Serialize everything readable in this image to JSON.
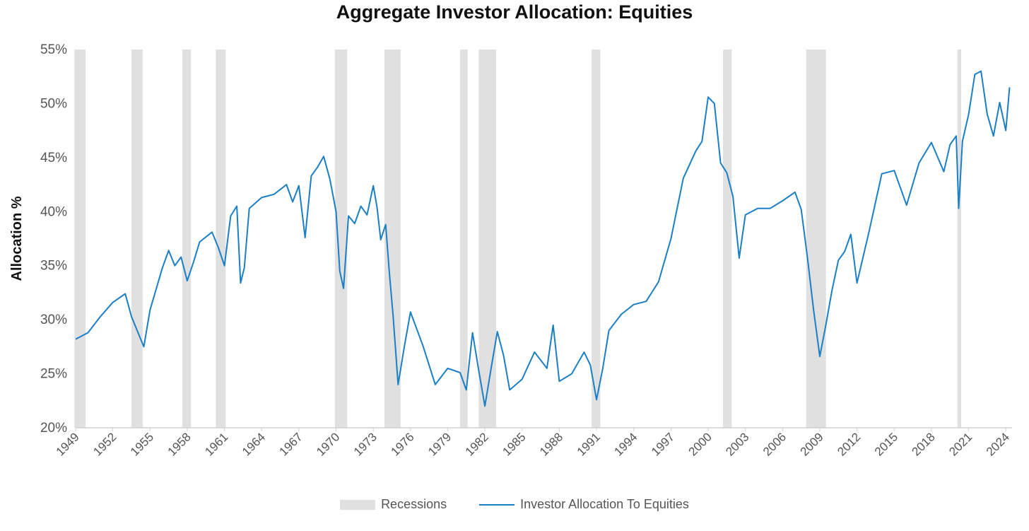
{
  "chart_data": {
    "type": "line",
    "title": "Aggregate Investor Allocation: Equities",
    "ylabel": "Allocation %",
    "ylim": [
      20,
      55
    ],
    "yticks": [
      "20%",
      "25%",
      "30%",
      "35%",
      "40%",
      "45%",
      "50%",
      "55%"
    ],
    "xlim": [
      1949,
      2024.5
    ],
    "xticks": [
      "1949",
      "1952",
      "1955",
      "1958",
      "1961",
      "1964",
      "1967",
      "1970",
      "1973",
      "1976",
      "1979",
      "1982",
      "1985",
      "1988",
      "1991",
      "1994",
      "1997",
      "2000",
      "2003",
      "2006",
      "2009",
      "2012",
      "2015",
      "2018",
      "2021",
      "2024"
    ],
    "grid": false,
    "legend_position": "bottom",
    "legend": [
      "Recessions",
      "Investor Allocation To Equities"
    ],
    "colors": {
      "line": "#1a7fc4",
      "recession": "#e0e0e0"
    },
    "recessions": [
      [
        1948.9,
        1949.8
      ],
      [
        1953.5,
        1954.4
      ],
      [
        1957.6,
        1958.3
      ],
      [
        1960.3,
        1961.1
      ],
      [
        1969.9,
        1970.9
      ],
      [
        1973.9,
        1975.2
      ],
      [
        1980.0,
        1980.6
      ],
      [
        1981.5,
        1982.9
      ],
      [
        1990.6,
        1991.3
      ],
      [
        2001.2,
        2001.9
      ],
      [
        2007.9,
        2009.5
      ],
      [
        2020.1,
        2020.4
      ]
    ],
    "series": [
      {
        "name": "Investor Allocation To Equities",
        "x": [
          1949,
          1950,
          1951,
          1952,
          1953,
          1953.5,
          1954,
          1954.5,
          1955,
          1956,
          1956.5,
          1957,
          1957.5,
          1958,
          1958.5,
          1959,
          1960,
          1960.5,
          1961,
          1961.5,
          1962,
          1962.3,
          1962.6,
          1963,
          1964,
          1965,
          1966,
          1966.5,
          1967,
          1967.5,
          1968,
          1968.5,
          1969,
          1969.5,
          1970,
          1970.3,
          1970.6,
          1971,
          1971.5,
          1972,
          1972.5,
          1973,
          1973.3,
          1973.6,
          1974,
          1974.3,
          1974.6,
          1975,
          1975.5,
          1976,
          1977,
          1978,
          1979,
          1980,
          1980.5,
          1981,
          1981.5,
          1982,
          1982.5,
          1983,
          1983.5,
          1984,
          1985,
          1986,
          1987,
          1987.5,
          1988,
          1989,
          1990,
          1990.5,
          1991,
          1991.5,
          1992,
          1993,
          1994,
          1995,
          1996,
          1997,
          1998,
          1999,
          1999.5,
          2000,
          2000.5,
          2001,
          2001.5,
          2002,
          2002.5,
          2003,
          2004,
          2005,
          2006,
          2007,
          2007.5,
          2008,
          2008.5,
          2009,
          2009.5,
          2010,
          2010.5,
          2011,
          2011.5,
          2012,
          2013,
          2014,
          2015,
          2016,
          2017,
          2018,
          2019,
          2019.5,
          2020,
          2020.2,
          2020.5,
          2021,
          2021.5,
          2022,
          2022.5,
          2023,
          2023.5,
          2024,
          2024.3
        ],
        "y": [
          28.2,
          28.8,
          30.3,
          31.6,
          32.4,
          30.3,
          28.9,
          27.5,
          30.9,
          34.8,
          36.4,
          35.0,
          35.8,
          33.6,
          35.3,
          37.2,
          38.1,
          36.7,
          35.0,
          39.6,
          40.5,
          33.4,
          34.8,
          40.3,
          41.3,
          41.6,
          42.5,
          40.9,
          42.4,
          37.6,
          43.3,
          44.1,
          45.1,
          43.0,
          40.0,
          34.5,
          32.9,
          39.6,
          38.9,
          40.5,
          39.7,
          42.4,
          40.4,
          37.4,
          38.8,
          34.3,
          30.3,
          24.0,
          27.5,
          30.7,
          27.6,
          24.0,
          25.5,
          25.1,
          23.5,
          28.8,
          25.3,
          22.0,
          25.5,
          28.9,
          26.7,
          23.5,
          24.5,
          27.0,
          25.5,
          29.5,
          24.3,
          25.0,
          27.0,
          25.8,
          22.6,
          25.5,
          29.0,
          30.5,
          31.4,
          31.7,
          33.5,
          37.5,
          43.1,
          45.6,
          46.5,
          50.6,
          50.0,
          44.5,
          43.6,
          41.4,
          35.7,
          39.7,
          40.3,
          40.3,
          41.0,
          41.8,
          40.2,
          35.8,
          30.9,
          26.6,
          29.6,
          32.8,
          35.5,
          36.3,
          37.9,
          33.4,
          38.3,
          43.5,
          43.8,
          40.6,
          44.5,
          46.4,
          43.7,
          46.2,
          47.0,
          40.3,
          46.5,
          49.0,
          52.7,
          53.0,
          49.0,
          47.0,
          50.1,
          47.5,
          51.5
        ]
      }
    ]
  }
}
